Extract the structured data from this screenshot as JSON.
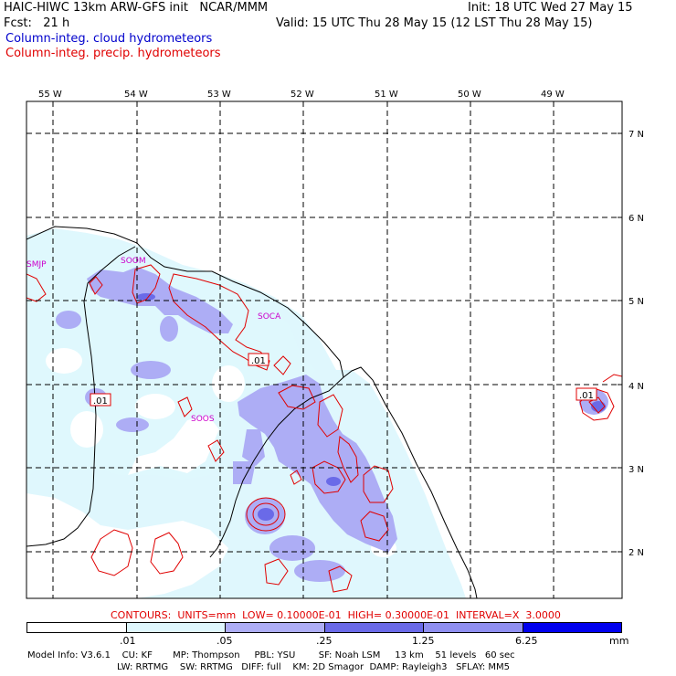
{
  "header": {
    "title": "HAIC-HIWC 13km ARW-GFS init   NCAR/MMM",
    "init": "Init: 18 UTC Wed 27 May 15",
    "fcst": "Fcst:   21 h",
    "valid": "Valid: 15 UTC Thu 28 May 15 (12 LST Thu 28 May 15)",
    "legend_cloud": "Column-integ. cloud hydrometeors",
    "legend_precip": "Column-integ. precip. hydrometeors"
  },
  "map": {
    "lon_labels": [
      "55 W",
      "54 W",
      "53 W",
      "52 W",
      "51 W",
      "50 W",
      "49 W"
    ],
    "lat_labels": [
      "7 N",
      "6 N",
      "5 N",
      "4 N",
      "3 N",
      "2 N"
    ],
    "stations": [
      "SMJP",
      "SOOM",
      "SOCA",
      "SOOS"
    ],
    "contour_labels": [
      ".01",
      ".01",
      ".01"
    ]
  },
  "contours_line": "CONTOURS:  UNITS=mm  LOW= 0.10000E-01  HIGH= 0.30000E-01  INTERVAL=X  3.0000",
  "colorbar": {
    "ticks": [
      ".01",
      ".05",
      ".25",
      "1.25",
      "6.25"
    ],
    "unit": "mm",
    "colors": [
      "#ffffff",
      "#dff7fd",
      "#adadf5",
      "#6a6ae8",
      "#0000ee"
    ]
  },
  "model_info": {
    "line1": "Model Info: V3.6.1    CU: KF       MP: Thompson     PBL: YSU        SF: Noah LSM     13 km    51 levels   60 sec",
    "line2": "LW: RRTMG    SW: RRTMG   DIFF: full    KM: 2D Smagor  DAMP: Rayleigh3   SFLAY: MM5"
  }
}
